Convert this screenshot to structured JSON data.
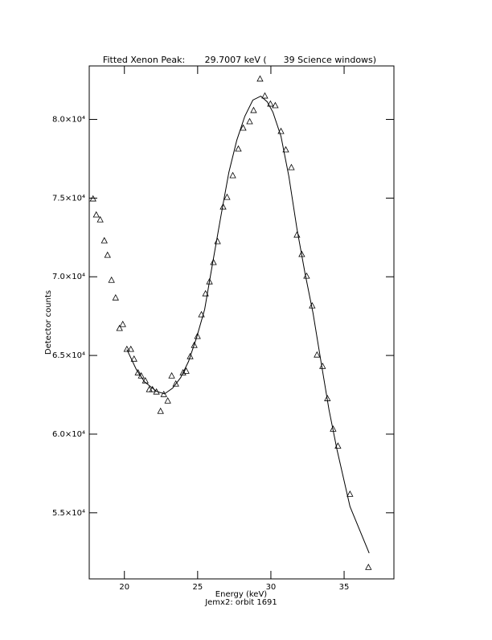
{
  "chart_data": {
    "type": "scatter",
    "title": "Fitted Xenon Peak:       29.7007 keV (      39 Science windows)",
    "x_label": "Energy (keV)",
    "subtitle": "Jemx2: orbit 1691",
    "y_label": "Detector counts",
    "xlim": [
      17.6,
      38.4
    ],
    "ylim": [
      50800,
      83400
    ],
    "xticks": [
      20,
      25,
      30,
      35
    ],
    "yticks": [
      {
        "value": 55000,
        "label": "5.5×10⁴"
      },
      {
        "value": 60000,
        "label": "6.0×10⁴"
      },
      {
        "value": 65000,
        "label": "6.5×10⁴"
      },
      {
        "value": 70000,
        "label": "7.0×10⁴"
      },
      {
        "value": 75000,
        "label": "7.5×10⁴"
      },
      {
        "value": 80000,
        "label": "8.0×10⁴"
      }
    ],
    "grid": false,
    "series": [
      {
        "name": "Data",
        "kind": "markers",
        "color": "#000000",
        "x": [
          17.86,
          18.08,
          18.35,
          18.63,
          18.85,
          19.12,
          19.4,
          19.67,
          19.89,
          20.17,
          20.44,
          20.66,
          20.93,
          21.15,
          21.43,
          21.7,
          21.92,
          22.19,
          22.47,
          22.69,
          22.96,
          23.23,
          23.51,
          24.0,
          24.22,
          24.49,
          24.77,
          24.99,
          25.26,
          25.54,
          25.81,
          26.08,
          26.36,
          26.74,
          27.01,
          27.4,
          27.78,
          28.11,
          28.55,
          28.82,
          29.26,
          29.59,
          29.97,
          30.3,
          30.69,
          31.02,
          31.4,
          31.78,
          32.11,
          32.44,
          32.82,
          33.15,
          33.53,
          33.86,
          34.25,
          34.58,
          35.4,
          36.66
        ],
        "values": [
          74940,
          73920,
          73610,
          72280,
          71360,
          69770,
          68650,
          66710,
          66960,
          65380,
          65380,
          64760,
          63890,
          63690,
          63380,
          62820,
          62820,
          62670,
          61440,
          62510,
          62100,
          63690,
          63180,
          63890,
          63990,
          64920,
          65630,
          66200,
          67580,
          68910,
          69670,
          70900,
          72230,
          74430,
          75040,
          76420,
          78110,
          79440,
          79850,
          80560,
          82560,
          81480,
          80970,
          80870,
          79230,
          78060,
          76930,
          72640,
          71410,
          70030,
          68140,
          65020,
          64300,
          62250,
          60310,
          59230,
          56170,
          51520
        ]
      },
      {
        "name": "Fit",
        "kind": "line",
        "color": "#000000",
        "x": [
          20.17,
          20.82,
          21.37,
          22.19,
          22.74,
          23.29,
          23.84,
          24.38,
          24.93,
          25.48,
          26.03,
          26.58,
          27.13,
          27.67,
          28.22,
          28.77,
          29.31,
          29.75,
          30.14,
          30.69,
          31.23,
          31.78,
          32.33,
          32.88,
          33.42,
          33.97,
          34.52,
          35.4,
          36.71
        ],
        "values": [
          65380,
          64100,
          63330,
          62720,
          62560,
          62920,
          63590,
          64620,
          66140,
          67930,
          70900,
          73810,
          76630,
          78670,
          80200,
          81230,
          81480,
          81120,
          80460,
          78930,
          76370,
          73050,
          70230,
          67680,
          64610,
          61540,
          58990,
          55400,
          52440
        ]
      }
    ]
  }
}
